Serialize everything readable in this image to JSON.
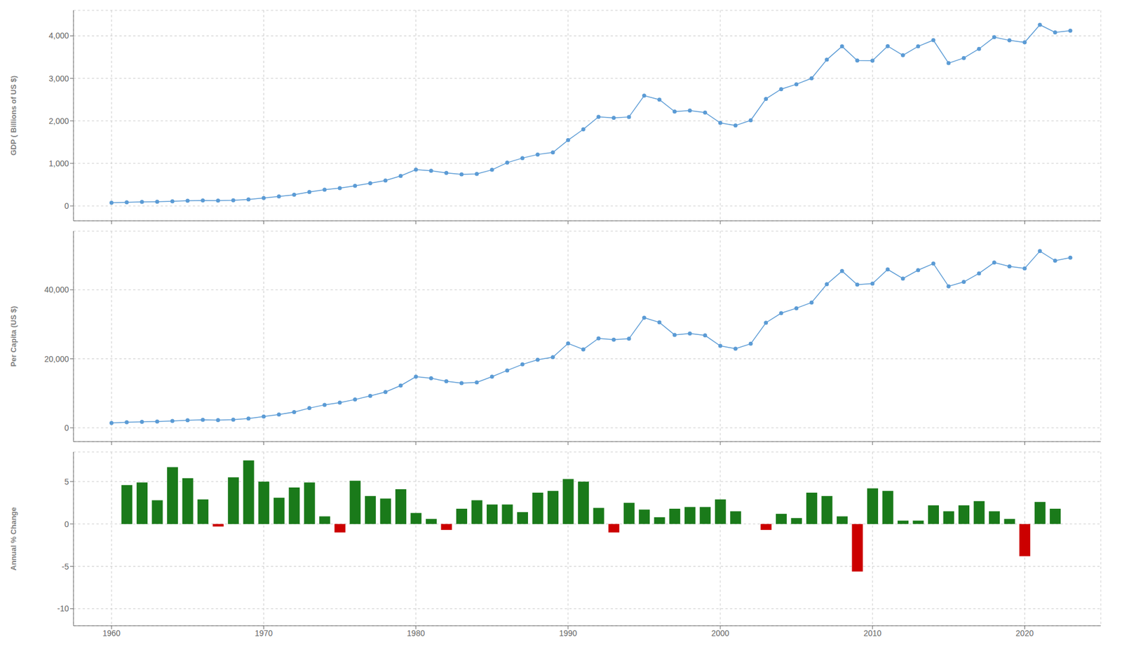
{
  "chart_data": [
    {
      "type": "line",
      "y_label": "GDP ( Billions of US $)",
      "x": [
        1960,
        1961,
        1962,
        1963,
        1964,
        1965,
        1966,
        1967,
        1968,
        1969,
        1970,
        1971,
        1972,
        1973,
        1974,
        1975,
        1976,
        1977,
        1978,
        1979,
        1980,
        1981,
        1982,
        1983,
        1984,
        1985,
        1986,
        1987,
        1988,
        1989,
        1990,
        1991,
        1992,
        1993,
        1994,
        1995,
        1996,
        1997,
        1998,
        1999,
        2000,
        2001,
        2002,
        2003,
        2004,
        2005,
        2006,
        2007,
        2008,
        2009,
        2010,
        2011,
        2012,
        2013,
        2014,
        2015,
        2016,
        2017,
        2018,
        2019,
        2020,
        2021,
        2022,
        2023
      ],
      "values": [
        73.3,
        86.1,
        94.5,
        100.0,
        109.7,
        121.0,
        129.8,
        126.0,
        133.4,
        152.1,
        186.4,
        221.7,
        262.3,
        328.3,
        383.2,
        419.8,
        472.5,
        534.0,
        598.2,
        706.4,
        854.0,
        826.9,
        775.5,
        741.9,
        752.6,
        849.0,
        1017.4,
        1125.1,
        1209.5,
        1257.0,
        1547.0,
        1801.4,
        2094.5,
        2071.5,
        2092.9,
        2592.1,
        2499.5,
        2218.5,
        2242.4,
        2197.0,
        1952.4,
        1891.0,
        2013.8,
        2517.6,
        2745.6,
        2861.7,
        3001.2,
        3439.0,
        3752.4,
        3418.4,
        3417.6,
        3757.7,
        3543.0,
        3752.5,
        3898.7,
        3357.6,
        3478.0,
        3693.2,
        3968.4,
        3893.7,
        3846.8,
        4259.9,
        4082.0,
        4121.0
      ],
      "color": "#5b9bd5",
      "marker": "circle",
      "xlim": [
        1957.5,
        2025
      ],
      "xticks": [
        1960,
        1970,
        1980,
        1990,
        2000,
        2010,
        2020
      ],
      "ylim": [
        -350,
        4600
      ],
      "yticks": [
        0,
        {
          "value": 1000,
          "label": "1,000"
        },
        {
          "value": 2000,
          "label": "2,000"
        },
        {
          "value": 3000,
          "label": "3,000"
        },
        {
          "value": 4000,
          "label": "4,000"
        }
      ],
      "grid": true,
      "tick_labels": "y"
    },
    {
      "type": "line",
      "y_label": "Per Capita (US $)",
      "x": [
        1960,
        1961,
        1962,
        1963,
        1964,
        1965,
        1966,
        1967,
        1968,
        1969,
        1970,
        1971,
        1972,
        1973,
        1974,
        1975,
        1976,
        1977,
        1978,
        1979,
        1980,
        1981,
        1982,
        1983,
        1984,
        1985,
        1986,
        1987,
        1988,
        1989,
        1990,
        1991,
        1992,
        1993,
        1994,
        1995,
        1996,
        1997,
        1998,
        1999,
        2000,
        2001,
        2002,
        2003,
        2004,
        2005,
        2006,
        2007,
        2008,
        2009,
        2010,
        2011,
        2012,
        2013,
        2014,
        2015,
        2016,
        2017,
        2018,
        2019,
        2020,
        2021,
        2022,
        2023
      ],
      "values": [
        1394,
        1618,
        1754,
        1836,
        1996,
        2183,
        2321,
        2241,
        2361,
        2681,
        3268,
        3869,
        4562,
        5706,
        6657,
        7286,
        8197,
        9263,
        10381,
        12254,
        14824,
        14357,
        13499,
        12958,
        13158,
        14831,
        16627,
        18380,
        19722,
        20485,
        24458,
        22723,
        25932,
        25564,
        25817,
        31916,
        30553,
        26936,
        27321,
        26787,
        23740,
        22944,
        24365,
        30457,
        33222,
        34665,
        36317,
        41622,
        45429,
        41511,
        41785,
        45897,
        43256,
        45698,
        47591,
        41015,
        42285,
        44761,
        47894,
        46773,
        46208,
        51204,
        48432,
        49296
      ],
      "color": "#5b9bd5",
      "marker": "circle",
      "xlim": [
        1957.5,
        2025
      ],
      "xticks": [
        1960,
        1970,
        1980,
        1990,
        2000,
        2010,
        2020
      ],
      "ylim": [
        -4000,
        57000
      ],
      "yticks": [
        0,
        {
          "value": 20000,
          "label": "20,000"
        },
        {
          "value": 40000,
          "label": "40,000"
        }
      ],
      "grid": true,
      "tick_labels": "y"
    },
    {
      "type": "bar",
      "y_label": "Annual % Change",
      "x": [
        1960,
        1961,
        1962,
        1963,
        1964,
        1965,
        1966,
        1967,
        1968,
        1969,
        1970,
        1971,
        1972,
        1973,
        1974,
        1975,
        1976,
        1977,
        1978,
        1979,
        1980,
        1981,
        1982,
        1983,
        1984,
        1985,
        1986,
        1987,
        1988,
        1989,
        1990,
        1991,
        1992,
        1993,
        1994,
        1995,
        1996,
        1997,
        1998,
        1999,
        2000,
        2001,
        2002,
        2003,
        2004,
        2005,
        2006,
        2007,
        2008,
        2009,
        2010,
        2011,
        2012,
        2013,
        2014,
        2015,
        2016,
        2017,
        2018,
        2019,
        2020,
        2021,
        2022,
        2023
      ],
      "values": [
        null,
        4.6,
        4.9,
        2.8,
        6.7,
        5.4,
        2.9,
        -0.3,
        5.5,
        7.5,
        5.0,
        3.1,
        4.3,
        4.9,
        0.9,
        -1.0,
        5.1,
        3.3,
        3.0,
        4.1,
        1.3,
        0.6,
        -0.7,
        1.8,
        2.8,
        2.3,
        2.3,
        1.4,
        3.7,
        3.9,
        5.3,
        5.0,
        1.9,
        -1.0,
        2.5,
        1.7,
        0.8,
        1.8,
        2.0,
        2.0,
        2.9,
        1.5,
        0.0,
        -0.7,
        1.2,
        0.7,
        3.7,
        3.3,
        0.9,
        -5.6,
        4.2,
        3.9,
        0.4,
        0.4,
        2.2,
        1.5,
        2.2,
        2.7,
        1.5,
        0.6,
        -3.8,
        2.6,
        1.8,
        0.0
      ],
      "colors": [
        "#1a7a1a",
        "#1a7a1a",
        "#1a7a1a",
        "#1a7a1a",
        "#1a7a1a",
        "#1a7a1a",
        "#1a7a1a",
        "#cc0000",
        "#1a7a1a",
        "#1a7a1a",
        "#1a7a1a",
        "#1a7a1a",
        "#1a7a1a",
        "#1a7a1a",
        "#1a7a1a",
        "#cc0000",
        "#1a7a1a",
        "#1a7a1a",
        "#1a7a1a",
        "#1a7a1a",
        "#1a7a1a",
        "#1a7a1a",
        "#cc0000",
        "#1a7a1a",
        "#1a7a1a",
        "#1a7a1a",
        "#1a7a1a",
        "#1a7a1a",
        "#1a7a1a",
        "#1a7a1a",
        "#1a7a1a",
        "#1a7a1a",
        "#1a7a1a",
        "#cc0000",
        "#1a7a1a",
        "#1a7a1a",
        "#1a7a1a",
        "#1a7a1a",
        "#1a7a1a",
        "#1a7a1a",
        "#1a7a1a",
        "#1a7a1a",
        "#1a7a1a",
        "#cc0000",
        "#1a7a1a",
        "#1a7a1a",
        "#1a7a1a",
        "#1a7a1a",
        "#1a7a1a",
        "#cc0000",
        "#1a7a1a",
        "#1a7a1a",
        "#1a7a1a",
        "#1a7a1a",
        "#1a7a1a",
        "#1a7a1a",
        "#1a7a1a",
        "#1a7a1a",
        "#1a7a1a",
        "#1a7a1a",
        "#cc0000",
        "#1a7a1a",
        "#1a7a1a",
        "#1a7a1a"
      ],
      "xlim": [
        1957.5,
        2025
      ],
      "xticks": [
        1960,
        1970,
        1980,
        1990,
        2000,
        2010,
        2020
      ],
      "ylim": [
        -12,
        8.5
      ],
      "yticks": [
        -10,
        -5,
        0,
        5
      ],
      "grid": true
    }
  ]
}
